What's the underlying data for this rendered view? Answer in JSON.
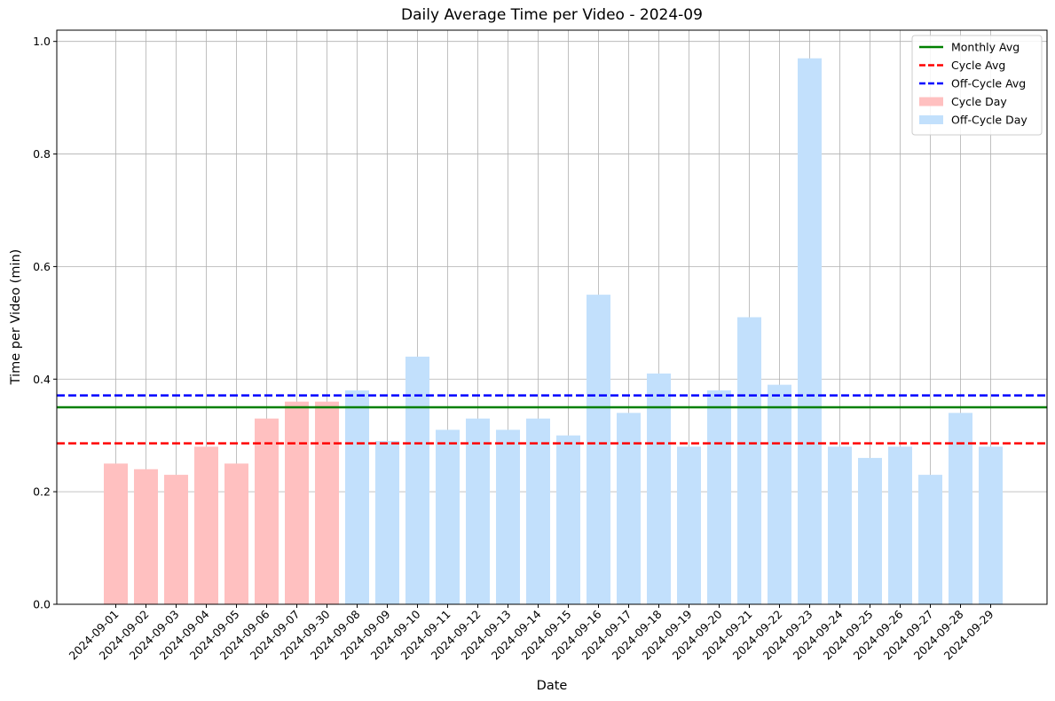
{
  "chart_data": {
    "type": "bar",
    "title": "Daily Average Time per Video - 2024-09",
    "xlabel": "Date",
    "ylabel": "Time per Video (min)",
    "ylim": [
      0,
      1.02
    ],
    "yticks": [
      0.0,
      0.2,
      0.4,
      0.6,
      0.8,
      1.0
    ],
    "ytick_labels": [
      "0.0",
      "0.2",
      "0.4",
      "0.6",
      "0.8",
      "1.0"
    ],
    "grid": true,
    "legend_position": "top-right",
    "categories": [
      "2024-09-01",
      "2024-09-02",
      "2024-09-03",
      "2024-09-04",
      "2024-09-05",
      "2024-09-06",
      "2024-09-07",
      "2024-09-30",
      "2024-09-08",
      "2024-09-09",
      "2024-09-10",
      "2024-09-11",
      "2024-09-12",
      "2024-09-13",
      "2024-09-14",
      "2024-09-15",
      "2024-09-16",
      "2024-09-17",
      "2024-09-18",
      "2024-09-19",
      "2024-09-20",
      "2024-09-21",
      "2024-09-22",
      "2024-09-23",
      "2024-09-24",
      "2024-09-25",
      "2024-09-26",
      "2024-09-27",
      "2024-09-28",
      "2024-09-29"
    ],
    "values": [
      0.25,
      0.24,
      0.23,
      0.28,
      0.25,
      0.33,
      0.36,
      0.36,
      0.38,
      0.29,
      0.44,
      0.31,
      0.33,
      0.31,
      0.33,
      0.3,
      0.55,
      0.34,
      0.41,
      0.28,
      0.38,
      0.51,
      0.39,
      0.97,
      0.28,
      0.26,
      0.28,
      0.23,
      0.34,
      0.28
    ],
    "groups": [
      "cycle",
      "cycle",
      "cycle",
      "cycle",
      "cycle",
      "cycle",
      "cycle",
      "cycle",
      "off",
      "off",
      "off",
      "off",
      "off",
      "off",
      "off",
      "off",
      "off",
      "off",
      "off",
      "off",
      "off",
      "off",
      "off",
      "off",
      "off",
      "off",
      "off",
      "off",
      "off",
      "off"
    ],
    "series": [
      {
        "key": "cycle",
        "name": "Cycle Day",
        "color": "#ffc0c0"
      },
      {
        "key": "off",
        "name": "Off-Cycle Day",
        "color": "#c2e0fc"
      }
    ],
    "reference_lines": [
      {
        "name": "Monthly Avg",
        "value": 0.35,
        "color": "#008000",
        "style": "solid"
      },
      {
        "name": "Cycle Avg",
        "value": 0.286,
        "color": "#ff0000",
        "style": "dashed"
      },
      {
        "name": "Off-Cycle Avg",
        "value": 0.371,
        "color": "#0000ff",
        "style": "dashed"
      }
    ],
    "legend": [
      "Monthly Avg",
      "Cycle Avg",
      "Off-Cycle Avg",
      "Cycle Day",
      "Off-Cycle Day"
    ]
  }
}
